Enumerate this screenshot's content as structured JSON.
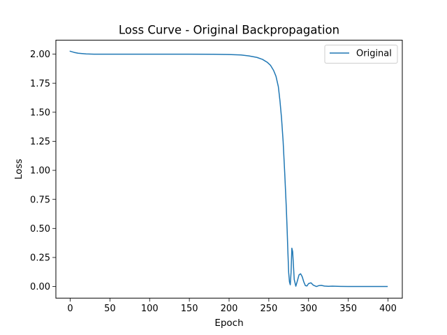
{
  "chart_data": {
    "type": "line",
    "title": "Loss Curve - Original Backpropagation",
    "xlabel": "Epoch",
    "ylabel": "Loss",
    "xlim": [
      -18,
      418
    ],
    "ylim": [
      -0.1,
      2.12
    ],
    "xticks": [
      0,
      50,
      100,
      150,
      200,
      250,
      300,
      350,
      400
    ],
    "yticks": [
      0.0,
      0.25,
      0.5,
      0.75,
      1.0,
      1.25,
      1.5,
      1.75,
      2.0
    ],
    "xtick_labels": [
      "0",
      "50",
      "100",
      "150",
      "200",
      "250",
      "300",
      "350",
      "400"
    ],
    "ytick_labels": [
      "0.00",
      "0.25",
      "0.50",
      "0.75",
      "1.00",
      "1.25",
      "1.50",
      "1.75",
      "2.00"
    ],
    "grid": false,
    "legend_position": "top-right",
    "series": [
      {
        "name": "Original",
        "color": "#1f77b4",
        "x": [
          0,
          5,
          10,
          20,
          30,
          50,
          100,
          150,
          180,
          200,
          215,
          225,
          235,
          242,
          248,
          252,
          256,
          259,
          262,
          264,
          266,
          268,
          270,
          272,
          273,
          274,
          275,
          276,
          277,
          278,
          279,
          280,
          281,
          282,
          284,
          286,
          288,
          290,
          292,
          294,
          296,
          298,
          300,
          303,
          306,
          310,
          313,
          316,
          320,
          325,
          330,
          340,
          350,
          370,
          399
        ],
        "y": [
          2.025,
          2.015,
          2.008,
          2.002,
          2.0,
          2.0,
          2.0,
          2.0,
          1.999,
          1.997,
          1.993,
          1.985,
          1.972,
          1.955,
          1.93,
          1.905,
          1.86,
          1.81,
          1.72,
          1.6,
          1.45,
          1.25,
          0.98,
          0.68,
          0.5,
          0.3,
          0.12,
          0.04,
          0.015,
          0.12,
          0.33,
          0.3,
          0.18,
          0.06,
          0.003,
          0.05,
          0.1,
          0.11,
          0.085,
          0.04,
          0.008,
          0.005,
          0.025,
          0.032,
          0.012,
          0.0,
          0.008,
          0.01,
          0.004,
          0.002,
          0.003,
          0.001,
          0.0,
          0.0,
          0.0
        ]
      }
    ]
  }
}
